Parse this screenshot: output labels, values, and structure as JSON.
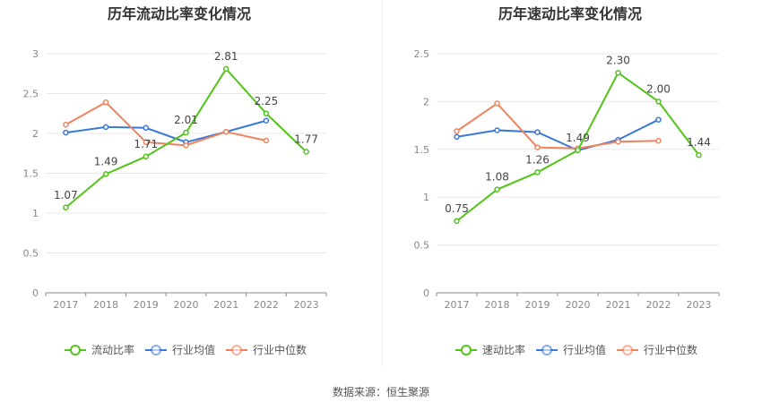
{
  "source_text": "数据来源：恒生聚源",
  "chart_data": [
    {
      "type": "line",
      "title": "历年流动比率变化情况",
      "categories": [
        "2017",
        "2018",
        "2019",
        "2020",
        "2021",
        "2022",
        "2023"
      ],
      "ylim": [
        0,
        3
      ],
      "yticks": [
        "0",
        "0.5",
        "1",
        "1.5",
        "2",
        "2.5",
        "3"
      ],
      "grid": true,
      "legend": "bottom",
      "series": [
        {
          "name": "流动比率",
          "color": "#52c41a",
          "values": [
            1.07,
            1.49,
            1.71,
            2.01,
            2.81,
            2.25,
            1.77
          ],
          "labels": [
            "1.07",
            "1.49",
            "1.71",
            "2.01",
            "2.81",
            "2.25",
            "1.77"
          ]
        },
        {
          "name": "行业均值",
          "color": "#3a78d8",
          "values": [
            2.01,
            2.08,
            2.07,
            1.89,
            2.02,
            2.16,
            null
          ]
        },
        {
          "name": "行业中位数",
          "color": "#f0835c",
          "values": [
            2.11,
            2.39,
            1.89,
            1.85,
            2.02,
            1.91,
            null
          ]
        }
      ]
    },
    {
      "type": "line",
      "title": "历年速动比率变化情况",
      "categories": [
        "2017",
        "2018",
        "2019",
        "2020",
        "2021",
        "2022",
        "2023"
      ],
      "ylim": [
        0,
        2.5
      ],
      "yticks": [
        "0",
        "0.5",
        "1",
        "1.5",
        "2",
        "2.5"
      ],
      "grid": true,
      "legend": "bottom",
      "series": [
        {
          "name": "速动比率",
          "color": "#52c41a",
          "values": [
            0.75,
            1.08,
            1.26,
            1.49,
            2.3,
            2.0,
            1.44
          ],
          "labels": [
            "0.75",
            "1.08",
            "1.26",
            "1.49",
            "2.30",
            "2.00",
            "1.44"
          ]
        },
        {
          "name": "行业均值",
          "color": "#3a78d8",
          "values": [
            1.63,
            1.7,
            1.68,
            1.49,
            1.6,
            1.81,
            null
          ]
        },
        {
          "name": "行业中位数",
          "color": "#f0835c",
          "values": [
            1.69,
            1.98,
            1.52,
            1.51,
            1.58,
            1.59,
            null
          ]
        }
      ]
    }
  ]
}
